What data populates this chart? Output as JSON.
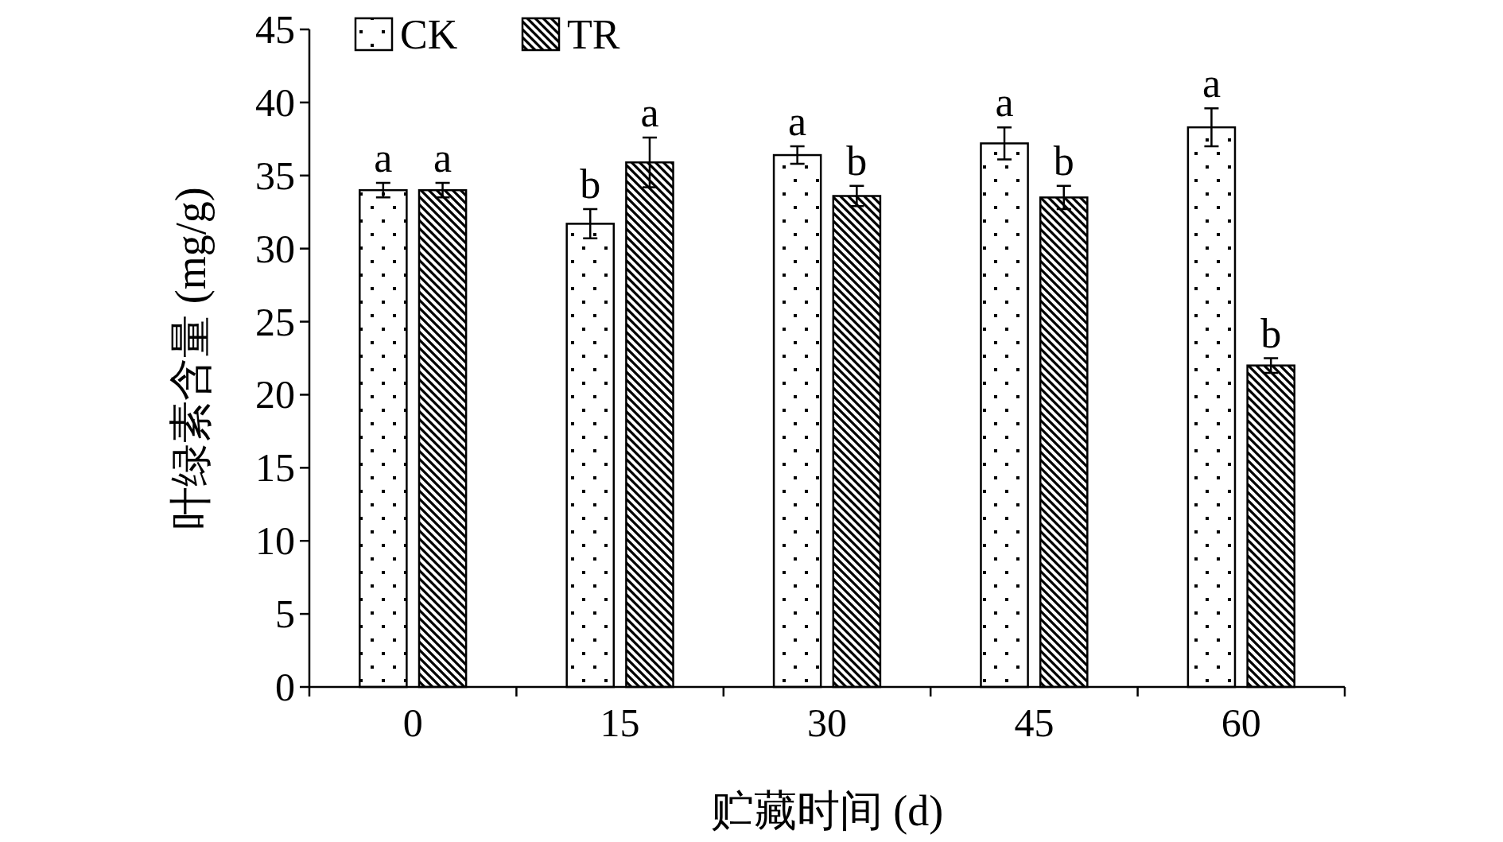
{
  "chart_data": {
    "type": "bar",
    "xlabel": "贮藏时间 (d)",
    "ylabel": "叶绿素含量 (mg/g)",
    "categories": [
      "0",
      "15",
      "30",
      "45",
      "60"
    ],
    "series": [
      {
        "name": "CK",
        "color": "#000000",
        "values": [
          34.0,
          31.7,
          36.4,
          37.2,
          38.3
        ],
        "errors": [
          0.5,
          1.0,
          0.6,
          1.1,
          1.3
        ]
      },
      {
        "name": "TR",
        "color": "#000000",
        "values": [
          34.0,
          35.9,
          33.6,
          33.5,
          22.0
        ],
        "errors": [
          0.5,
          1.7,
          0.7,
          0.8,
          0.5
        ]
      }
    ],
    "ylim": [
      0,
      45
    ],
    "yticks": [
      0,
      5,
      10,
      15,
      20,
      25,
      30,
      35,
      40,
      45
    ],
    "legend": "top left",
    "grid": false,
    "annotations": [
      "a",
      "a",
      "b",
      "a",
      "a",
      "b",
      "a",
      "b",
      "a",
      "b"
    ]
  }
}
